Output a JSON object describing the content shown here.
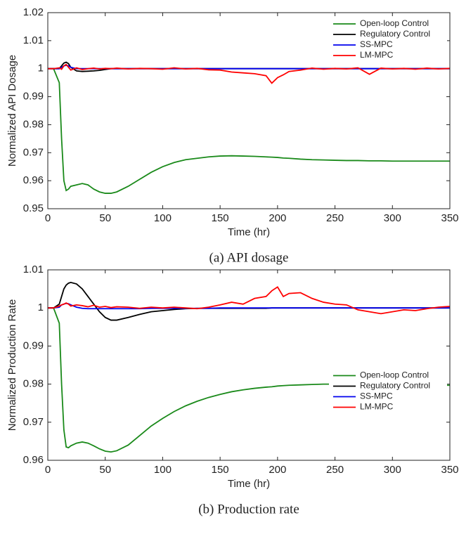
{
  "chart_data": [
    {
      "type": "line",
      "xlabel": "Time (hr)",
      "ylabel": "Normalized API Dosage",
      "caption": "(a)  API dosage",
      "xlim": [
        0,
        350
      ],
      "xticks": [
        0,
        50,
        100,
        150,
        200,
        250,
        300,
        350
      ],
      "ylim": [
        0.95,
        1.02
      ],
      "yticks": [
        0.95,
        0.96,
        0.97,
        0.98,
        0.99,
        1,
        1.01,
        1.02
      ],
      "legend_loc": "upper right",
      "x": [
        0,
        5,
        10,
        12,
        14,
        16,
        18,
        20,
        25,
        30,
        35,
        40,
        45,
        50,
        55,
        60,
        70,
        80,
        90,
        100,
        110,
        120,
        130,
        140,
        150,
        160,
        170,
        180,
        190,
        195,
        200,
        205,
        210,
        220,
        230,
        240,
        250,
        260,
        270,
        280,
        290,
        300,
        310,
        320,
        330,
        340,
        350
      ],
      "series": [
        {
          "name": "Open-loop Control",
          "color": "#1a8a1a",
          "values": [
            1,
            1,
            0.995,
            0.975,
            0.96,
            0.9565,
            0.957,
            0.958,
            0.9585,
            0.959,
            0.9585,
            0.957,
            0.956,
            0.9555,
            0.9555,
            0.956,
            0.958,
            0.9605,
            0.963,
            0.965,
            0.9665,
            0.9675,
            0.968,
            0.9685,
            0.9688,
            0.9689,
            0.9688,
            0.9687,
            0.9685,
            0.9684,
            0.9683,
            0.9681,
            0.968,
            0.9677,
            0.9675,
            0.9674,
            0.9673,
            0.9672,
            0.9672,
            0.9671,
            0.9671,
            0.967,
            0.967,
            0.967,
            0.967,
            0.967,
            0.967
          ]
        },
        {
          "name": "Regulatory Control",
          "color": "#000000",
          "values": [
            1,
            1,
            1,
            1.001,
            1.002,
            1.0023,
            1.0018,
            1.0005,
            0.9992,
            0.999,
            0.9991,
            0.9992,
            0.9994,
            0.9997,
            1,
            1,
            1,
            1,
            1,
            1,
            1,
            1,
            1,
            1,
            1,
            1,
            1,
            1,
            1,
            1,
            1,
            1,
            1,
            1,
            1,
            1,
            1,
            1,
            1,
            1,
            1,
            1,
            1,
            1,
            1,
            1,
            1
          ]
        },
        {
          "name": "SS-MPC",
          "color": "#0000ee",
          "values": [
            1,
            1,
            1,
            1.0005,
            1.001,
            1.0012,
            1.001,
            1.0005,
            1,
            1,
            1,
            1,
            1,
            1,
            1,
            1,
            1,
            1,
            1,
            1,
            1,
            1,
            1,
            1,
            1,
            1,
            1,
            1,
            1,
            1,
            1,
            1,
            1,
            1,
            1,
            1,
            1,
            1,
            1,
            1,
            1,
            1,
            1,
            1,
            1,
            1,
            1
          ]
        },
        {
          "name": "LM-MPC",
          "color": "#ff0000",
          "values": [
            1,
            1,
            1.0003,
            0.9998,
            1.001,
            1.0015,
            1.0005,
            0.9995,
            1.0003,
            0.9997,
            1,
            1.0002,
            0.9999,
            1.0001,
            1,
            1.0002,
            0.9999,
            1.0001,
            1,
            0.9998,
            1.0003,
            0.9999,
            1.0001,
            0.9996,
            0.9995,
            0.9988,
            0.9985,
            0.9982,
            0.9975,
            0.9948,
            0.9968,
            0.9978,
            0.999,
            0.9995,
            1.0002,
            0.9998,
            1.0001,
            0.9999,
            1.0003,
            0.998,
            1.0002,
            0.9999,
            1.0001,
            0.9998,
            1.0002,
            0.9999,
            1.0001
          ]
        }
      ]
    },
    {
      "type": "line",
      "xlabel": "Time (hr)",
      "ylabel": "Normalized Production Rate",
      "caption": "(b) Production rate",
      "xlim": [
        0,
        350
      ],
      "xticks": [
        0,
        50,
        100,
        150,
        200,
        250,
        300,
        350
      ],
      "ylim": [
        0.96,
        1.01
      ],
      "yticks": [
        0.96,
        0.97,
        0.98,
        0.99,
        1,
        1.01
      ],
      "legend_loc": "right",
      "x": [
        0,
        5,
        10,
        12,
        14,
        16,
        18,
        20,
        25,
        30,
        35,
        40,
        45,
        50,
        55,
        60,
        70,
        80,
        90,
        100,
        110,
        120,
        130,
        140,
        150,
        160,
        170,
        180,
        190,
        195,
        200,
        205,
        210,
        220,
        230,
        240,
        250,
        260,
        270,
        280,
        290,
        300,
        310,
        320,
        330,
        340,
        350
      ],
      "series": [
        {
          "name": "Open-loop Control",
          "color": "#1a8a1a",
          "values": [
            1,
            1,
            0.996,
            0.98,
            0.968,
            0.9635,
            0.9633,
            0.9638,
            0.9645,
            0.9648,
            0.9645,
            0.9638,
            0.963,
            0.9624,
            0.9622,
            0.9625,
            0.964,
            0.9665,
            0.969,
            0.971,
            0.9728,
            0.9743,
            0.9755,
            0.9765,
            0.9773,
            0.978,
            0.9785,
            0.9789,
            0.9792,
            0.9793,
            0.9795,
            0.9796,
            0.9797,
            0.9798,
            0.9799,
            0.98,
            0.98,
            0.98,
            0.98,
            0.98,
            0.98,
            0.98,
            0.9799,
            0.9798,
            0.9798,
            0.9797,
            0.9797
          ]
        },
        {
          "name": "Regulatory Control",
          "color": "#000000",
          "values": [
            1,
            1,
            1.001,
            1.003,
            1.005,
            1.006,
            1.0065,
            1.0067,
            1.0063,
            1.005,
            1.003,
            1.001,
            0.999,
            0.9975,
            0.9968,
            0.9968,
            0.9975,
            0.9983,
            0.999,
            0.9993,
            0.9996,
            0.9998,
            0.9999,
            0.9999,
            0.9999,
            0.9999,
            0.9999,
            0.9999,
            0.9999,
            1,
            1,
            1,
            1,
            1,
            1,
            1,
            1,
            1,
            1,
            1,
            1,
            1,
            1,
            1,
            1,
            1,
            1
          ]
        },
        {
          "name": "SS-MPC",
          "color": "#0000ee",
          "values": [
            1,
            1,
            1.0002,
            1.0008,
            1.001,
            1.0012,
            1.0011,
            1.0008,
            1.0002,
            0.9999,
            0.9998,
            0.9998,
            0.9998,
            0.9998,
            0.9998,
            0.9998,
            0.9998,
            0.9998,
            0.9999,
            0.9999,
            0.9999,
            0.9999,
            0.9999,
            0.9999,
            1,
            1,
            1,
            1,
            1,
            1,
            1,
            1,
            1,
            1,
            1,
            1,
            1,
            1,
            1,
            1,
            1,
            1,
            1,
            1,
            1,
            1,
            1
          ]
        },
        {
          "name": "LM-MPC",
          "color": "#ff0000",
          "values": [
            1,
            1,
            1.0005,
            1.0008,
            1.001,
            1.0013,
            1.001,
            1.0005,
            1.0008,
            1.0006,
            1.0003,
            1.0007,
            1.0002,
            1.0004,
            1.0001,
            1.0003,
            1.0002,
            0.9999,
            1.0002,
            1,
            1.0002,
            1,
            0.9998,
            1.0002,
            1.0008,
            1.0015,
            1.001,
            1.0025,
            1.003,
            1.0045,
            1.0055,
            1.003,
            1.0038,
            1.004,
            1.0025,
            1.0015,
            1.001,
            1.0008,
            0.9995,
            0.999,
            0.9985,
            0.999,
            0.9995,
            0.9993,
            0.9998,
            1.0002,
            1.0004
          ]
        }
      ]
    }
  ]
}
